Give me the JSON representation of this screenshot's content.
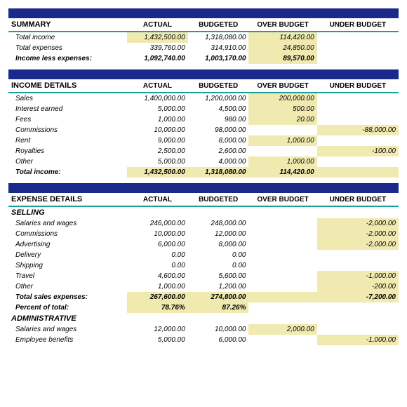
{
  "colors": {
    "header_bar": "#1a2a8a",
    "header_underline": "#1aa09a",
    "highlight": "#f0eab0",
    "background": "#ffffff",
    "text": "#000000"
  },
  "columns": [
    "ACTUAL",
    "BUDGETED",
    "OVER BUDGET",
    "UNDER BUDGET"
  ],
  "summary": {
    "title": "SUMMARY",
    "rows": [
      {
        "label": "Total income",
        "actual": "1,432,500.00",
        "budgeted": "1,318,080.00",
        "over": "114,420.00",
        "under": "",
        "italic": true,
        "hl_actual": true,
        "hl_over": true
      },
      {
        "label": "Total expenses",
        "actual": "339,760.00",
        "budgeted": "314,910.00",
        "over": "24,850.00",
        "under": "",
        "italic": true,
        "hl_over": true
      },
      {
        "label": "Income less expenses:",
        "actual": "1,092,740.00",
        "budgeted": "1,003,170.00",
        "over": "89,570.00",
        "under": "",
        "italic": true,
        "bold": true,
        "hl_over": true
      }
    ]
  },
  "income": {
    "title": "INCOME DETAILS",
    "rows": [
      {
        "label": "Sales",
        "actual": "1,400,000.00",
        "budgeted": "1,200,000.00",
        "over": "200,000.00",
        "under": "",
        "italic": true,
        "hl_over": true
      },
      {
        "label": "Interest earned",
        "actual": "5,000.00",
        "budgeted": "4,500.00",
        "over": "500.00",
        "under": "",
        "italic": true,
        "hl_over": true
      },
      {
        "label": "Fees",
        "actual": "1,000.00",
        "budgeted": "980.00",
        "over": "20.00",
        "under": "",
        "italic": true,
        "hl_over": true
      },
      {
        "label": "Commissions",
        "actual": "10,000.00",
        "budgeted": "98,000.00",
        "over": "",
        "under": "-88,000.00",
        "italic": true,
        "hl_under": true
      },
      {
        "label": "Rent",
        "actual": "9,000.00",
        "budgeted": "8,000.00",
        "over": "1,000.00",
        "under": "",
        "italic": true,
        "hl_over": true
      },
      {
        "label": "Royalties",
        "actual": "2,500.00",
        "budgeted": "2,600.00",
        "over": "",
        "under": "-100.00",
        "italic": true,
        "hl_under": true
      },
      {
        "label": "Other",
        "actual": "5,000.00",
        "budgeted": "4,000.00",
        "over": "1,000.00",
        "under": "",
        "italic": true,
        "hl_over": true
      },
      {
        "label": "Total income:",
        "actual": "1,432,500.00",
        "budgeted": "1,318,080.00",
        "over": "114,420.00",
        "under": "",
        "italic": true,
        "bold": true,
        "hl_actual": true,
        "hl_budgeted": true,
        "hl_over": true,
        "hl_under": true
      }
    ]
  },
  "expense": {
    "title": "EXPENSE DETAILS",
    "selling": {
      "title": "SELLING",
      "rows": [
        {
          "label": "Salaries and wages",
          "actual": "246,000.00",
          "budgeted": "248,000.00",
          "over": "",
          "under": "-2,000.00",
          "italic": true,
          "hl_under": true
        },
        {
          "label": "Commissions",
          "actual": "10,000.00",
          "budgeted": "12,000.00",
          "over": "",
          "under": "-2,000.00",
          "italic": true,
          "hl_under": true
        },
        {
          "label": "Advertising",
          "actual": "6,000.00",
          "budgeted": "8,000.00",
          "over": "",
          "under": "-2,000.00",
          "italic": true,
          "hl_under": true
        },
        {
          "label": "Delivery",
          "actual": "0.00",
          "budgeted": "0.00",
          "over": "",
          "under": "",
          "italic": true
        },
        {
          "label": "Shipping",
          "actual": "0.00",
          "budgeted": "0.00",
          "over": "",
          "under": "",
          "italic": true
        },
        {
          "label": "Travel",
          "actual": "4,600.00",
          "budgeted": "5,600.00",
          "over": "",
          "under": "-1,000.00",
          "italic": true,
          "hl_under": true
        },
        {
          "label": "Other",
          "actual": "1,000.00",
          "budgeted": "1,200.00",
          "over": "",
          "under": "-200.00",
          "italic": true,
          "hl_under": true
        },
        {
          "label": "Total sales expenses:",
          "actual": "267,600.00",
          "budgeted": "274,800.00",
          "over": "",
          "under": "-7,200.00",
          "italic": true,
          "bold": true,
          "hl_actual": true,
          "hl_budgeted": true,
          "hl_over": true,
          "hl_under": true
        },
        {
          "label": "Percent of total:",
          "actual": "78.76%",
          "budgeted": "87.26%",
          "over": "",
          "under": "",
          "italic": true,
          "bold": true,
          "hl_actual": true,
          "hl_budgeted": true
        }
      ]
    },
    "admin": {
      "title": "ADMINISTRATIVE",
      "rows": [
        {
          "label": "Salaries and wages",
          "actual": "12,000.00",
          "budgeted": "10,000.00",
          "over": "2,000.00",
          "under": "",
          "italic": true,
          "hl_over": true
        },
        {
          "label": "Employee benefits",
          "actual": "5,000.00",
          "budgeted": "6,000.00",
          "over": "",
          "under": "-1,000.00",
          "italic": true,
          "hl_under": true
        }
      ]
    }
  }
}
